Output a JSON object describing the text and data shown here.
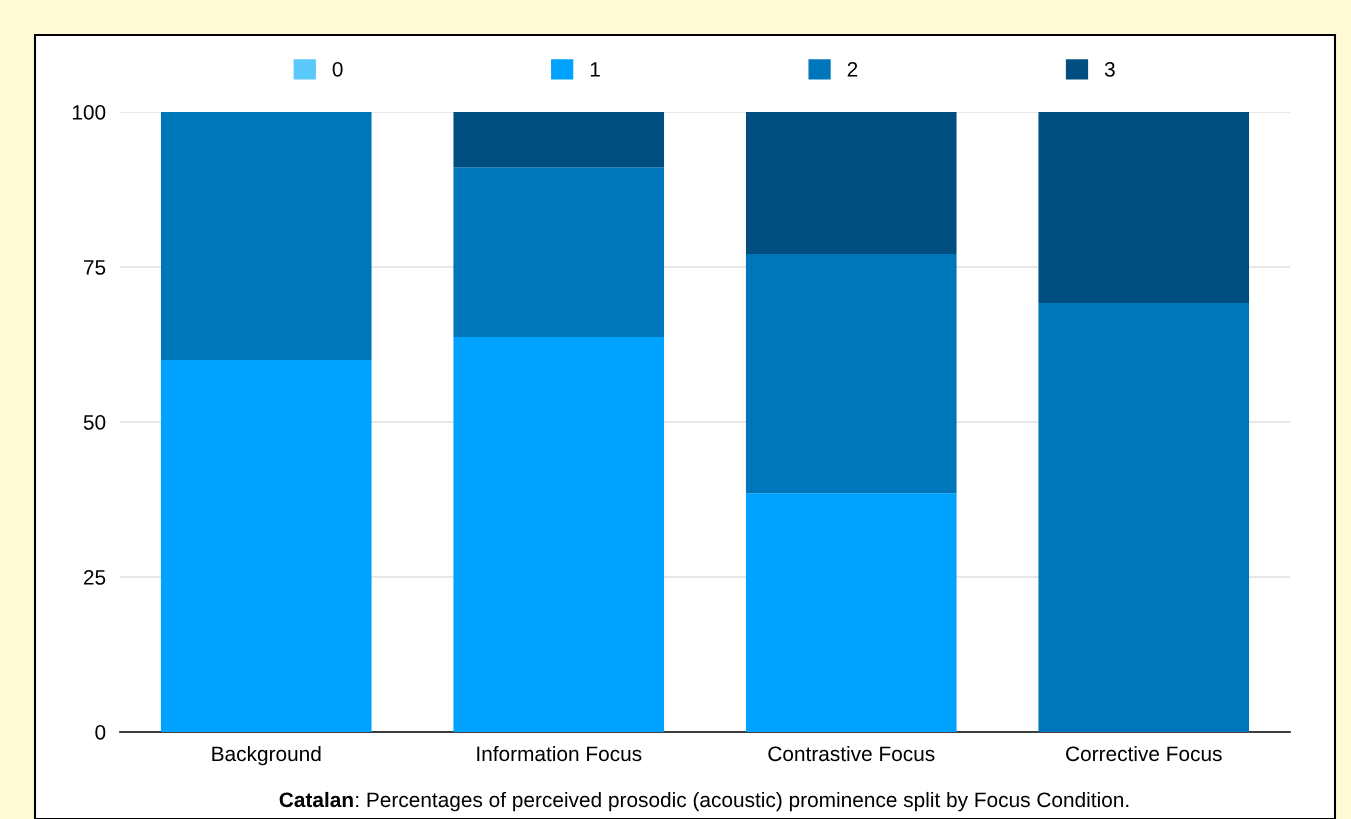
{
  "chart_data": {
    "type": "bar",
    "stacked": true,
    "title": "Catalan: Percentages of perceived prosodic (acoustic) prominence split by Focus Condition.",
    "categories": [
      "Background",
      "Information Focus",
      "Contrastive Focus",
      "Corrective Focus"
    ],
    "series": [
      {
        "name": "0",
        "color": "#5ac8fa",
        "values": [
          0,
          0,
          0,
          0
        ]
      },
      {
        "name": "1",
        "color": "#00a2ff",
        "values": [
          60.0,
          63.7,
          38.5,
          0
        ]
      },
      {
        "name": "2",
        "color": "#0076ba",
        "values": [
          40.0,
          27.4,
          38.6,
          69.2
        ]
      },
      {
        "name": "3",
        "color": "#004d7f",
        "values": [
          0,
          8.9,
          22.9,
          30.8
        ]
      }
    ],
    "ylim": [
      0,
      100
    ],
    "yticks": [
      0,
      25,
      50,
      75,
      100
    ],
    "grid": "y",
    "legend": "top"
  }
}
